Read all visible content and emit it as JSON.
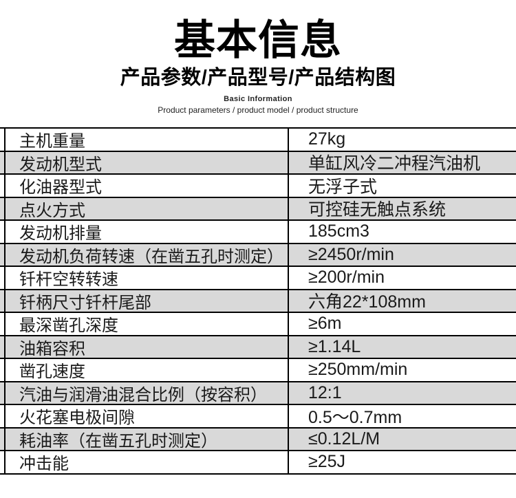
{
  "header": {
    "title": "基本信息",
    "subtitle": "产品参数/产品型号/产品结构图",
    "subtitle_en_bold": "Basic Information",
    "subtitle_en": "Product parameters / product model / product structure"
  },
  "table": {
    "rows": [
      {
        "label": "主机重量",
        "value": "27kg"
      },
      {
        "label": "发动机型式",
        "value": "单缸风冷二冲程汽油机"
      },
      {
        "label": "化油器型式",
        "value": "无浮子式"
      },
      {
        "label": "点火方式",
        "value": "可控硅无触点系统"
      },
      {
        "label": "发动机排量",
        "value": "185cm3"
      },
      {
        "label": "发动机负荷转速（在凿五孔时测定）",
        "value": "≥2450r/min"
      },
      {
        "label": "钎杆空转转速",
        "value": "≥200r/min"
      },
      {
        "label": "钎柄尺寸钎杆尾部",
        "value": "六角22*108mm"
      },
      {
        "label": "最深凿孔深度",
        "value": "≥6m"
      },
      {
        "label": "油箱容积",
        "value": "≥1.14L"
      },
      {
        "label": "凿孔速度",
        "value": "≥250mm/min"
      },
      {
        "label": "汽油与润滑油混合比例（按容积）",
        "value": "12:1"
      },
      {
        "label": "火花塞电极间隙",
        "value": "0.5～0.7mm"
      },
      {
        "label": "耗油率（在凿五孔时测定）",
        "value": "≤0.12L/M"
      },
      {
        "label": "冲击能",
        "value": "≥25J"
      }
    ],
    "colors": {
      "alt_row": "#d9d9d9",
      "border": "#000000"
    }
  }
}
